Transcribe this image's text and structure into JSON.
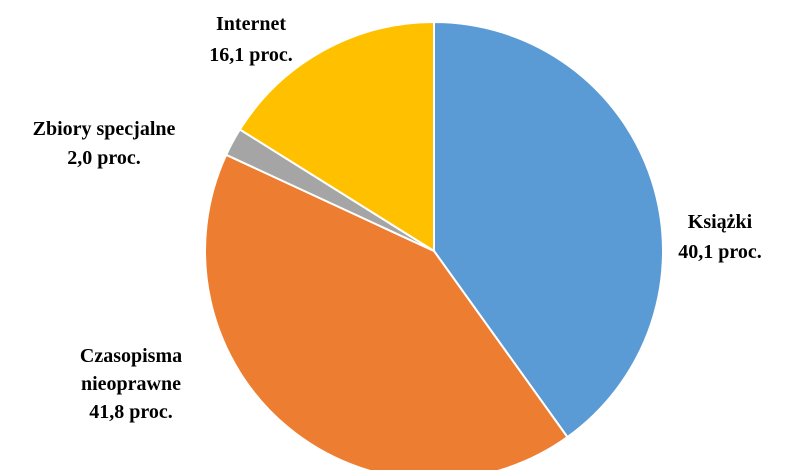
{
  "chart_data": {
    "type": "pie",
    "title": "",
    "start_angle_deg": 0,
    "direction": "clockwise",
    "legend": "none",
    "slices": [
      {
        "name": "Książki",
        "value": 40.1,
        "label_lines": [
          "Książki",
          "40,1 proc."
        ],
        "color": "#5B9BD5"
      },
      {
        "name": "Czasopisma nieoprawne",
        "value": 41.8,
        "label_lines": [
          "Czasopisma",
          "nieoprawne",
          "41,8 proc."
        ],
        "color": "#ED7D31"
      },
      {
        "name": "Zbiory specjalne",
        "value": 2.0,
        "label_lines": [
          "Zbiory  specjalne",
          "2,0 proc."
        ],
        "color": "#A5A5A5"
      },
      {
        "name": "Internet",
        "value": 16.1,
        "label_lines": [
          "Internet",
          "16,1 proc."
        ],
        "color": "#FFC000"
      }
    ]
  }
}
